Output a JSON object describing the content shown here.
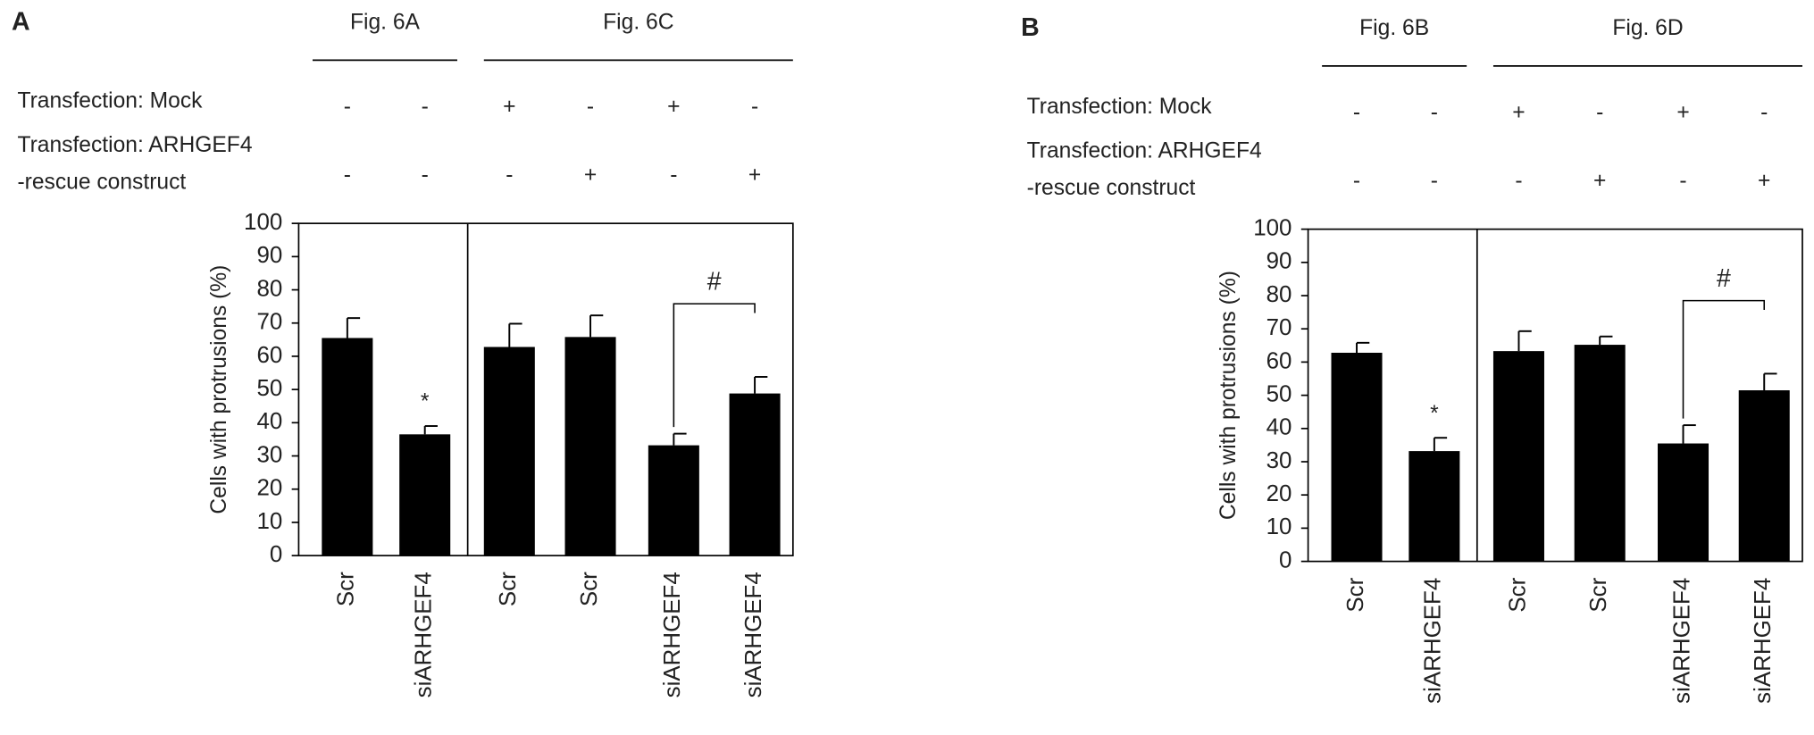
{
  "chart_data": [
    {
      "type": "bar",
      "panel": "A",
      "groups": [
        "Fig. 6A",
        "Fig. 6C"
      ],
      "rows": [
        {
          "label": [
            "Transfection: Mock"
          ],
          "signs": [
            "-",
            "-",
            "+",
            "-",
            "+",
            "-"
          ]
        },
        {
          "label": [
            "Transfection: ARHGEF4",
            "-rescue construct"
          ],
          "signs": [
            "-",
            "-",
            "-",
            "+",
            "-",
            "+"
          ]
        }
      ],
      "y_label": "Cells with protrusions (%)",
      "categories": [
        "Scr",
        "siARHGEF4",
        "Scr",
        "Scr",
        "siARHGEF4",
        "siARHGEF4"
      ],
      "values": [
        65.5,
        36.5,
        62.8,
        65.8,
        33.2,
        48.8
      ],
      "errors": [
        6,
        2.5,
        7,
        6.5,
        3.5,
        5
      ],
      "color": "#000000",
      "ylim": [
        0,
        100
      ],
      "yticks": [
        0,
        10,
        20,
        30,
        40,
        50,
        60,
        70,
        80,
        90,
        100
      ],
      "star_label": "*",
      "bracket_label": "#"
    },
    {
      "type": "bar",
      "panel": "B",
      "groups": [
        "Fig. 6B",
        "Fig. 6D"
      ],
      "rows": [
        {
          "label": [
            "Transfection: Mock"
          ],
          "signs": [
            "-",
            "-",
            "+",
            "-",
            "+",
            "-"
          ]
        },
        {
          "label": [
            "Transfection: ARHGEF4",
            "-rescue construct"
          ],
          "signs": [
            "-",
            "-",
            "-",
            "+",
            "-",
            "+"
          ]
        }
      ],
      "y_label": "Cells with protrusions (%)",
      "categories": [
        "Scr",
        "siARHGEF4",
        "Scr",
        "Scr",
        "siARHGEF4",
        "siARHGEF4"
      ],
      "values": [
        62.8,
        33.2,
        63.3,
        65.2,
        35.5,
        51.5
      ],
      "errors": [
        3,
        4,
        6,
        2.5,
        5.5,
        5
      ],
      "color": "#000000",
      "ylim": [
        0,
        100
      ],
      "yticks": [
        0,
        10,
        20,
        30,
        40,
        50,
        60,
        70,
        80,
        90,
        100
      ],
      "star_label": "*",
      "bracket_label": "#"
    }
  ]
}
